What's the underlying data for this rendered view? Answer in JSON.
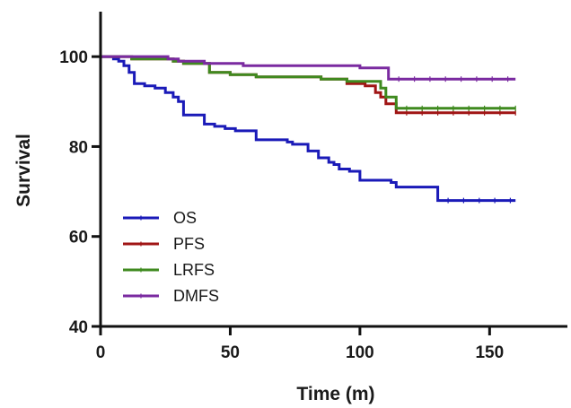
{
  "chart_data": {
    "type": "line",
    "step": true,
    "title": "",
    "xlabel": "Time (m)",
    "ylabel": "Survival",
    "xlim": [
      0,
      180
    ],
    "ylim": [
      40,
      110
    ],
    "xticks": [
      0,
      50,
      100,
      150
    ],
    "yticks": [
      40,
      60,
      80,
      100
    ],
    "grid": false,
    "legend_position": "bottom-left",
    "series": [
      {
        "name": "OS",
        "color": "#1a1ab8",
        "x": [
          0,
          5,
          7,
          9,
          11,
          13,
          17,
          21,
          25,
          28,
          30,
          32,
          40,
          44,
          48,
          52,
          60,
          72,
          74,
          80,
          84,
          88,
          90,
          92,
          96,
          100,
          112,
          114,
          130,
          160
        ],
        "y": [
          100,
          99.5,
          99,
          98,
          96.5,
          94,
          93.5,
          93,
          92,
          91,
          90,
          87,
          85,
          84.5,
          84,
          83.5,
          81.5,
          81,
          80.5,
          79,
          77.5,
          76.5,
          76,
          75,
          74.5,
          72.5,
          72,
          71,
          68,
          68
        ]
      },
      {
        "name": "PFS",
        "color": "#a01515",
        "x": [
          0,
          12,
          28,
          32,
          42,
          50,
          60,
          85,
          95,
          100,
          102,
          106,
          108,
          110,
          114,
          160
        ],
        "y": [
          100,
          99.5,
          99,
          98.5,
          96.5,
          96,
          95.5,
          95,
          94,
          94,
          93.5,
          92,
          91,
          89.5,
          87.5,
          87.5
        ]
      },
      {
        "name": "LRFS",
        "color": "#3f8a1f",
        "x": [
          0,
          12,
          28,
          32,
          42,
          50,
          60,
          85,
          95,
          106,
          108,
          110,
          114,
          160
        ],
        "y": [
          100,
          99.5,
          99,
          98.5,
          96.5,
          96,
          95.5,
          95,
          94.5,
          94.5,
          93,
          91,
          88.5,
          88.5
        ]
      },
      {
        "name": "DMFS",
        "color": "#7a2aa0",
        "x": [
          0,
          26,
          30,
          40,
          45,
          55,
          60,
          70,
          95,
          100,
          108,
          111,
          160
        ],
        "y": [
          100,
          99.5,
          99,
          98.5,
          98.5,
          98,
          98,
          98,
          98,
          97.5,
          97.5,
          95,
          95
        ]
      }
    ]
  }
}
